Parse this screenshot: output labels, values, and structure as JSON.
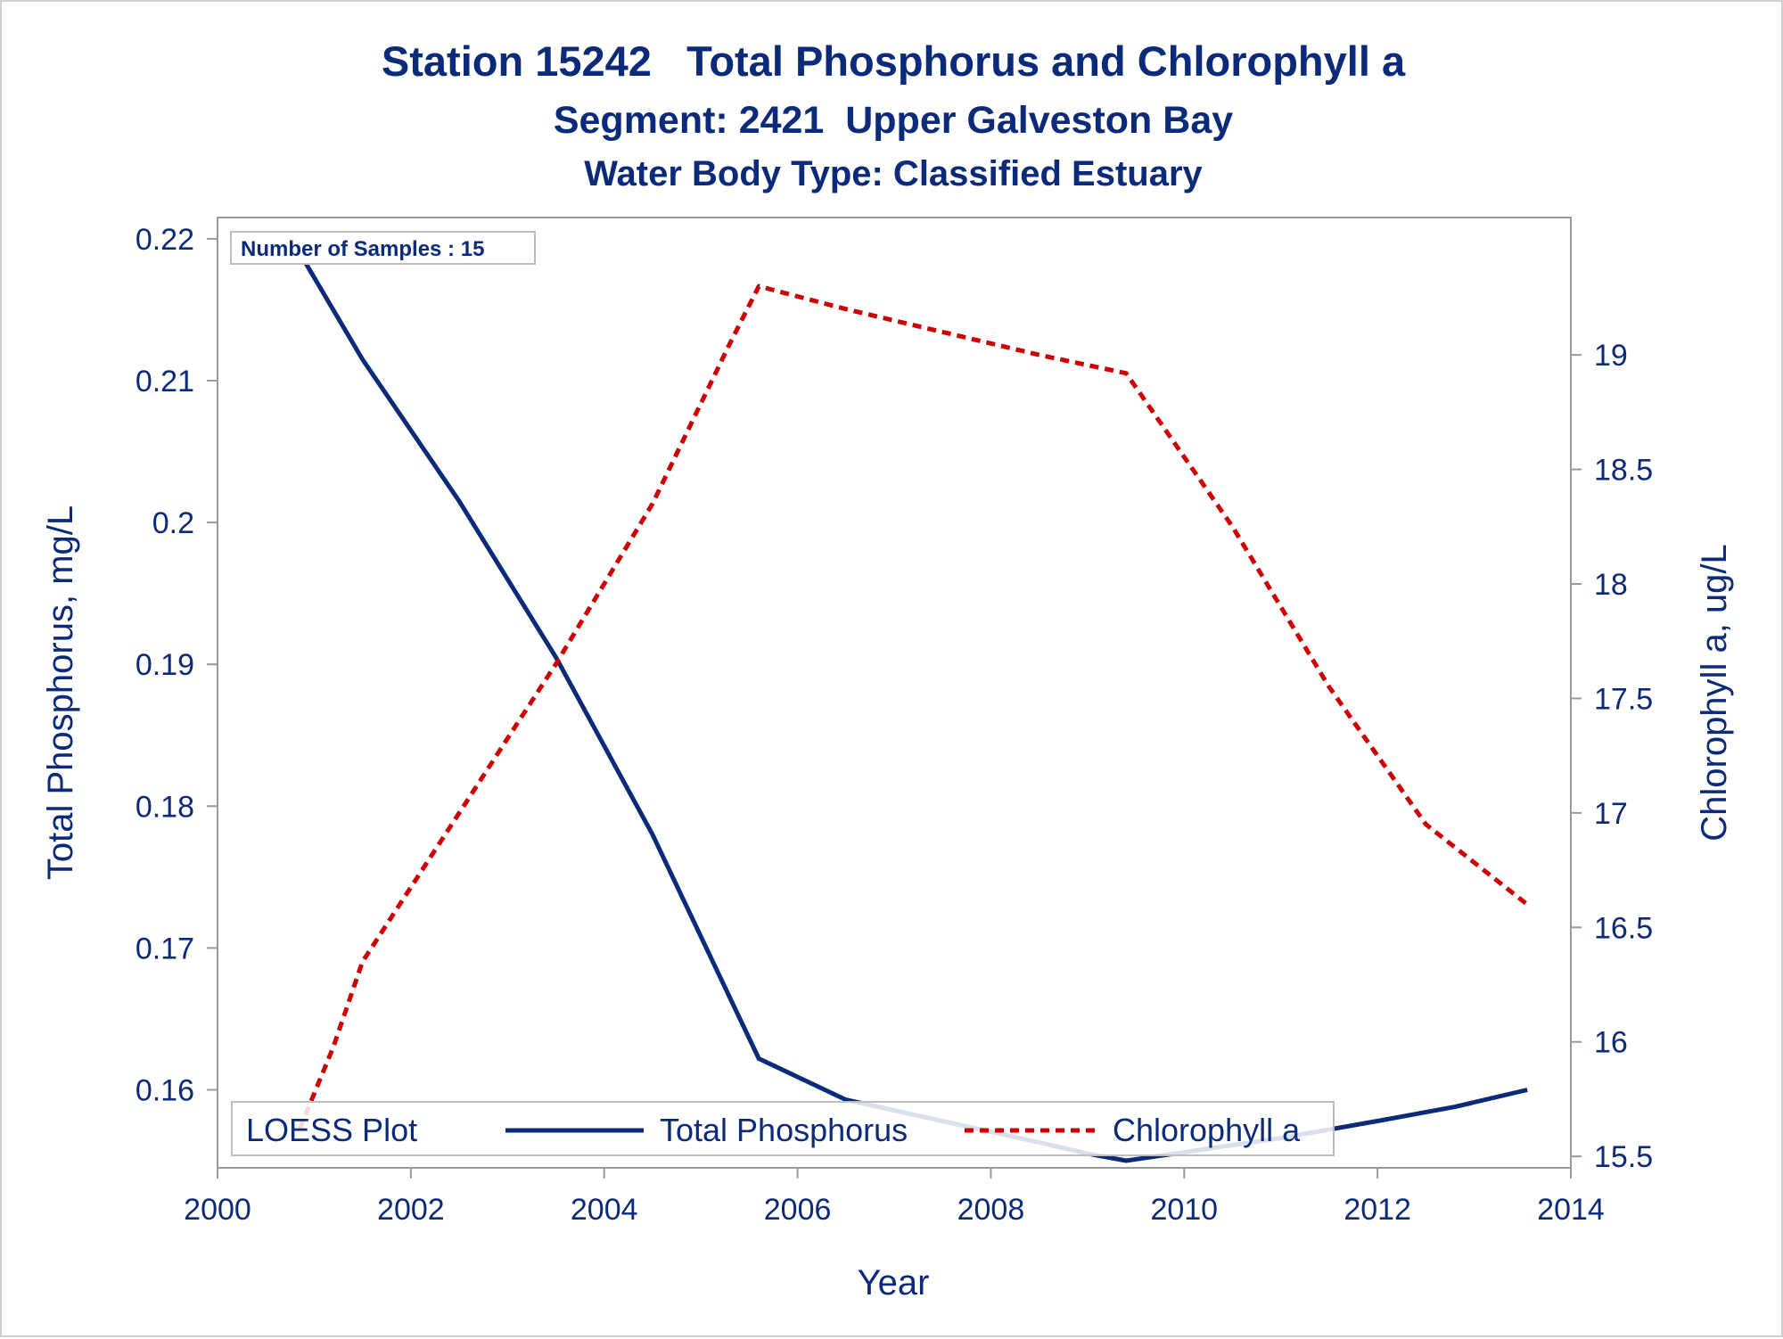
{
  "chart_data": {
    "type": "line",
    "title": "Station 15242   Total Phosphorus and Chlorophyll a",
    "subtitle": "Segment: 2421  Upper Galveston Bay",
    "subtitle2": "Water Body Type: Classified Estuary",
    "xlabel": "Year",
    "ylabel": "Total Phosphorus, mg/L",
    "y2label": "Chlorophyll a, ug/L",
    "xlim": [
      2000,
      2014
    ],
    "ylim": [
      0.1545,
      0.2215
    ],
    "y2lim": [
      15.45,
      19.6
    ],
    "xticks": [
      "2000",
      "2002",
      "2004",
      "2006",
      "2008",
      "2010",
      "2012",
      "2014"
    ],
    "yticks": [
      "0.16",
      "0.17",
      "0.18",
      "0.19",
      "0.2",
      "0.21",
      "0.22"
    ],
    "y2ticks": [
      "15.5",
      "16",
      "16.5",
      "17",
      "17.5",
      "18",
      "18.5",
      "19"
    ],
    "annotation": "Number of Samples : 15",
    "legend": {
      "title": "LOESS Plot",
      "position": "bottom-inside",
      "entries": [
        "Total Phosphorus",
        "Chlorophyll a"
      ]
    },
    "series": [
      {
        "name": "Total Phosphorus",
        "axis": "left",
        "color": "#0b2a7a",
        "style": "solid",
        "x": [
          2000.85,
          2001.5,
          2002.5,
          2003.5,
          2004.5,
          2005.3,
          2005.6,
          2006.5,
          2007.5,
          2008.5,
          2009.0,
          2009.4,
          2010.0,
          2011.0,
          2012.0,
          2012.8,
          2013.55
        ],
        "y": [
          0.219,
          0.2115,
          0.2015,
          0.1905,
          0.178,
          0.1665,
          0.1622,
          0.1593,
          0.1578,
          0.1563,
          0.1555,
          0.155,
          0.1556,
          0.1566,
          0.1578,
          0.1588,
          0.16
        ]
      },
      {
        "name": "Chlorophyll a",
        "axis": "right",
        "color": "#cc0000",
        "style": "dotted",
        "x": [
          2000.85,
          2001.2,
          2001.5,
          2002.5,
          2003.5,
          2004.5,
          2005.3,
          2005.6,
          2006.5,
          2007.5,
          2008.5,
          2009.4,
          2010.5,
          2011.5,
          2012.5,
          2013.55
        ],
        "y": [
          15.62,
          15.98,
          16.35,
          17.0,
          17.65,
          18.35,
          19.05,
          19.3,
          19.2,
          19.1,
          19.0,
          18.92,
          18.25,
          17.55,
          16.95,
          16.6
        ]
      }
    ]
  }
}
